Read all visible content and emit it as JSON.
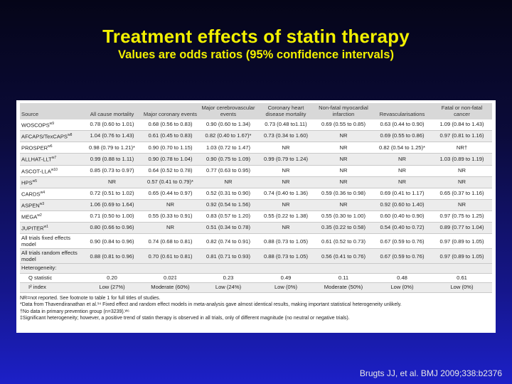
{
  "title": "Treatment effects of statin therapy",
  "subtitle": "Values are odds ratios (95% confidence intervals)",
  "table": {
    "headers": [
      "Source",
      "All cause mortality",
      "Major coronary events",
      "Major cerebrovascular events",
      "Coronary heart disease mortality",
      "Non-fatal myocardial infarction",
      "Revascularisations",
      "Fatal or non-fatal cancer"
    ],
    "rows": [
      {
        "label": "WOSCOPS",
        "sup": "w9",
        "cells": [
          "0.78 (0.60 to 1.01)",
          "0.68 (0.56 to 0.83)",
          "0.90 (0.60 to 1.34)",
          "0.73 (0.48 to1.11)",
          "0.69 (0.55 to 0.85)",
          "0.63 (0.44 to 0.90)",
          "1.09 (0.84 to 1.43)"
        ]
      },
      {
        "label": "AFCAPS/TexCAPS",
        "sup": "w8",
        "cells": [
          "1.04 (0.76 to 1.43)",
          "0.61 (0.45 to 0.83)",
          "0.82 (0.40 to 1.67)*",
          "0.73 (0.34 to 1.60)",
          "NR",
          "0.69 (0.55 to 0.86)",
          "0.97 (0.81 to 1.16)"
        ]
      },
      {
        "label": "PROSPER",
        "sup": "w6",
        "cells": [
          "0.98 (0.79 to 1.21)*",
          "0.90 (0.70 to 1.15)",
          "1.03 (0.72 to 1.47)",
          "NR",
          "NR",
          "0.82 (0.54 to 1.25)*",
          "NR†"
        ]
      },
      {
        "label": "ALLHAT-LLT",
        "sup": "w7",
        "cells": [
          "0.99 (0.88 to 1.11)",
          "0.90 (0.78 to 1.04)",
          "0.90 (0.75 to 1.09)",
          "0.99 (0.79 to 1.24)",
          "NR",
          "NR",
          "1.03 (0.89 to 1.19)"
        ]
      },
      {
        "label": "ASCOT-LLA",
        "sup": "w10",
        "cells": [
          "0.85 (0.73 to 0.97)",
          "0.64 (0.52 to 0.78)",
          "0.77 (0.63 to 0.95)",
          "NR",
          "NR",
          "NR",
          "NR"
        ]
      },
      {
        "label": "HPS",
        "sup": "w5",
        "cells": [
          "NR",
          "0.57 (0.41 to 0.79)*",
          "NR",
          "NR",
          "NR",
          "NR",
          "NR"
        ]
      },
      {
        "label": "CARDS",
        "sup": "w4",
        "cells": [
          "0.72 (0.51 to 1.02)",
          "0.65 (0.44 to 0.97)",
          "0.52 (0.31 to 0.90)",
          "0.74 (0.40 to 1.36)",
          "0.59 (0.36 to 0.98)",
          "0.69 (0.41 to 1.17)",
          "0.65 (0.37 to 1.16)"
        ]
      },
      {
        "label": "ASPEN",
        "sup": "w3",
        "cells": [
          "1.06 (0.69 to 1.64)",
          "NR",
          "0.92 (0.54 to 1.56)",
          "NR",
          "NR",
          "0.92 (0.60 to 1.40)",
          "NR"
        ]
      },
      {
        "label": "MEGA",
        "sup": "w2",
        "cells": [
          "0.71 (0.50 to 1.00)",
          "0.55 (0.33 to 0.91)",
          "0.83 (0.57 to 1.20)",
          "0.55 (0.22 to 1.38)",
          "0.55 (0.30 to 1.00)",
          "0.60 (0.40 to 0.90)",
          "0.97 (0.75 to 1.25)"
        ]
      },
      {
        "label": "JUPITER",
        "sup": "w1",
        "cells": [
          "0.80 (0.66 to 0.96)",
          "NR",
          "0.51 (0.34 to 0.78)",
          "NR",
          "0.35 (0.22 to 0.58)",
          "0.54 (0.40 to 0.72)",
          "0.89 (0.77 to 1.04)"
        ]
      },
      {
        "label": "All trials fixed effects model",
        "sup": "",
        "cells": [
          "0.90 (0.84 to 0.96)",
          "0.74 (0.68 to 0.81)",
          "0.82 (0.74 to 0.91)",
          "0.88 (0.73 to 1.05)",
          "0.61 (0.52 to 0.73)",
          "0.67 (0.59 to 0.76)",
          "0.97 (0.89 to 1.05)"
        ]
      },
      {
        "label": "All trials random effects model",
        "sup": "",
        "cells": [
          "0.88 (0.81 to 0.96)",
          "0.70 (0.61 to 0.81)",
          "0.81 (0.71 to 0.93)",
          "0.88 (0.73 to 1.05)",
          "0.56 (0.41 to 0.76)",
          "0.67 (0.59 to 0.76)",
          "0.97 (0.89 to 1.05)"
        ]
      }
    ],
    "heterogeneity_label": "Heterogeneity:",
    "q_label": "Q statistic",
    "q_values": [
      "0.20",
      "0.02‡",
      "0.23",
      "0.49",
      "0.11",
      "0.48",
      "0.61"
    ],
    "i2_label": "I² index",
    "i2_values": [
      "Low (27%)",
      "Moderate (60%)",
      "Low (24%)",
      "Low (0%)",
      "Moderate (50%)",
      "Low (0%)",
      "Low (0%)"
    ]
  },
  "notes": [
    "NR=not reported. See footnote to table  1 for full titles of studies.",
    "*Data from Thavendiranathan et al.¹⁴ Fixed effect and random effect models in meta-analysis gave almost identical results, making important statistical heterogeneity unlikely.",
    "†No data in primary prevention group (n=3239).ʷ⁶",
    "‡Significant heterogeneity; however, a positive trend of statin therapy is observed in all trials, only of different magnitude (no neutral or negative trials)."
  ],
  "citation": "Brugts JJ, et al. BMJ 2009;338:b2376"
}
